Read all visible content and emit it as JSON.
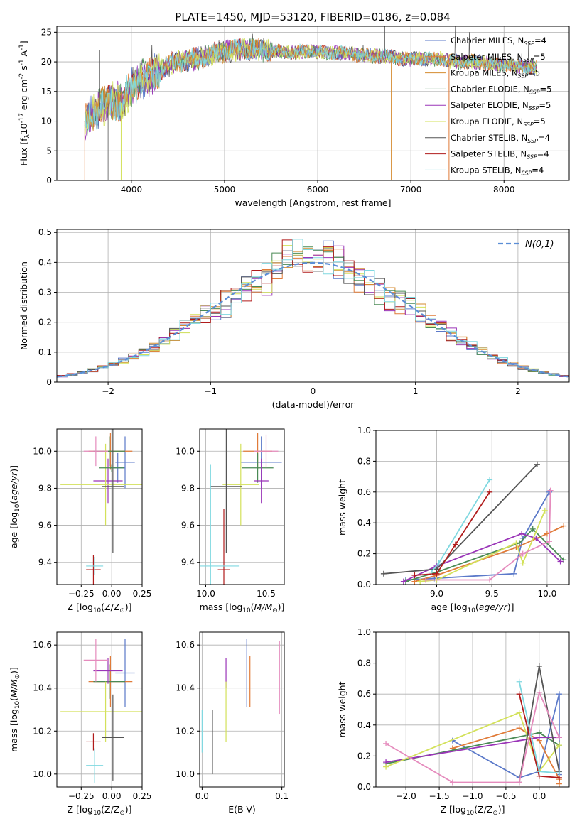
{
  "figure_title": "PLATE=1450, MJD=53120, FIBERID=0186, z=0.084",
  "chart_data": [
    {
      "type": "line",
      "xlabel": "wavelength [Angstrom, rest frame]",
      "ylabel": "Flux [f$_\\lambda$10$^{-17}$ erg cm$^{-2}$ s$^{-1}$ A$^{-1}$]",
      "xlim": [
        3200,
        8700
      ],
      "ylim": [
        0,
        26
      ],
      "xticks": [
        4000,
        5000,
        6000,
        7000,
        8000
      ],
      "yticks": [
        0,
        5,
        10,
        15,
        20,
        25
      ],
      "legend_position": "right",
      "envelope": {
        "x": [
          3500,
          3600,
          3700,
          3800,
          3900,
          4000,
          4100,
          4200,
          4300,
          4400,
          4500,
          4700,
          4900,
          5100,
          5300,
          5500,
          5700,
          5900,
          6100,
          6300,
          6500,
          6700,
          6900,
          7100,
          7300,
          7500,
          7700,
          7900,
          8100,
          8300
        ],
        "y": [
          10,
          11.5,
          12.5,
          13.5,
          13,
          15.5,
          17,
          17.5,
          18.5,
          19.5,
          20,
          20.5,
          21.5,
          22,
          22,
          22,
          21.5,
          21.8,
          21.5,
          21.5,
          21,
          21,
          20.5,
          20.5,
          20.5,
          20,
          20,
          19.5,
          19.5,
          19
        ]
      },
      "series": [
        {
          "name": "Chabrier MILES, N$_{SSP}$=4",
          "color": "#5b79c9"
        },
        {
          "name": "Salpeter MILES, N$_{SSP}$=5",
          "color": "#e07b39"
        },
        {
          "name": "Kroupa MILES, N$_{SSP}$=5",
          "color": "#d58b2f"
        },
        {
          "name": "Chabrier ELODIE, N$_{SSP}$=5",
          "color": "#4a8a55"
        },
        {
          "name": "Salpeter ELODIE, N$_{SSP}$=5",
          "color": "#9a35b8"
        },
        {
          "name": "Kroupa ELODIE, N$_{SSP}$=5",
          "color": "#d3e15a"
        },
        {
          "name": "Chabrier STELIB, N$_{SSP}$=4",
          "color": "#555555"
        },
        {
          "name": "Salpeter STELIB, N$_{SSP}$=4",
          "color": "#b01b1b"
        },
        {
          "name": "Kroupa STELIB, N$_{SSP}$=4",
          "color": "#7fd8e0"
        }
      ]
    },
    {
      "type": "histogram",
      "xlabel": "(data-model)/error",
      "ylabel": "Normed distribution",
      "xlim": [
        -2.5,
        2.5
      ],
      "ylim": [
        0,
        0.51
      ],
      "xticks": [
        -2,
        -1,
        0,
        1,
        2
      ],
      "yticks": [
        0.0,
        0.1,
        0.2,
        0.3,
        0.4,
        0.5
      ],
      "legend": "$\\mathcal{N}(0,1)$",
      "legend_position": "upper right",
      "grid": true,
      "bin_width": 0.1
    },
    {
      "type": "scatter",
      "xlabel": "Z [log$_{10}$(Z/Z$_\\odot$)]",
      "ylabel": "age  [log$_{10}$($age/yr$)]",
      "xlim": [
        -0.45,
        0.25
      ],
      "ylim": [
        9.28,
        10.12
      ],
      "xticks": [
        -0.25,
        0.0,
        0.25
      ],
      "yticks": [
        9.4,
        9.6,
        9.8,
        10.0
      ],
      "points": [
        {
          "x": 0.05,
          "y": 9.91,
          "xerr": 0.06,
          "yerr": 0.08,
          "color": "#5b79c9"
        },
        {
          "x": 0.11,
          "y": 9.94,
          "xerr": 0.08,
          "yerr": 0.14,
          "color": "#5b79c9"
        },
        {
          "x": -0.01,
          "y": 10.0,
          "xerr": 0.18,
          "yerr": 0.1,
          "color": "#e07b39"
        },
        {
          "x": -0.02,
          "y": 10.0,
          "xerr": 0.13,
          "yerr": 0.08,
          "color": "#4a8a55"
        },
        {
          "x": -0.03,
          "y": 9.84,
          "xerr": 0.12,
          "yerr": 0.12,
          "color": "#9a35b8"
        },
        {
          "x": -0.05,
          "y": 9.82,
          "xerr": 0.37,
          "yerr": 0.22,
          "color": "#d3e15a"
        },
        {
          "x": 0.01,
          "y": 9.81,
          "xerr": 0.09,
          "yerr": 0.36,
          "color": "#555555"
        },
        {
          "x": -0.15,
          "y": 9.36,
          "xerr": 0.06,
          "yerr": 0.08,
          "color": "#b01b1b"
        },
        {
          "x": -0.14,
          "y": 9.38,
          "xerr": 0.07,
          "yerr": 0.05,
          "color": "#7fd8e0"
        },
        {
          "x": -0.13,
          "y": 10.0,
          "xerr": 0.1,
          "yerr": 0.08,
          "color": "#e58bbd"
        },
        {
          "x": 0.0,
          "y": 9.91,
          "xerr": 0.1,
          "yerr": 0.02,
          "color": "#4a8a55"
        }
      ]
    },
    {
      "type": "scatter",
      "xlabel": "mass [log$_{10}$($M/M_\\odot$)]",
      "xlim": [
        9.95,
        10.65
      ],
      "ylim": [
        9.28,
        10.12
      ],
      "xticks": [
        10.0,
        10.5
      ],
      "yticks": [
        9.4,
        9.6,
        9.8,
        10.0
      ],
      "points": [
        {
          "x": 10.46,
          "y": 9.94,
          "xerr": 0.17,
          "yerr": 0.14,
          "color": "#5b79c9"
        },
        {
          "x": 10.43,
          "y": 10.0,
          "xerr": 0.12,
          "yerr": 0.1,
          "color": "#e07b39"
        },
        {
          "x": 10.43,
          "y": 9.91,
          "xerr": 0.13,
          "yerr": 0.08,
          "color": "#4a8a55"
        },
        {
          "x": 10.46,
          "y": 9.84,
          "xerr": 0.06,
          "yerr": 0.12,
          "color": "#9a35b8"
        },
        {
          "x": 10.29,
          "y": 9.82,
          "xerr": 0.15,
          "yerr": 0.22,
          "color": "#d3e15a"
        },
        {
          "x": 10.17,
          "y": 9.81,
          "xerr": 0.13,
          "yerr": 0.36,
          "color": "#555555"
        },
        {
          "x": 10.15,
          "y": 9.36,
          "xerr": 0.05,
          "yerr": 0.33,
          "color": "#b01b1b"
        },
        {
          "x": 10.04,
          "y": 9.38,
          "xerr": 0.24,
          "yerr": 0.55,
          "color": "#7fd8e0"
        },
        {
          "x": 10.5,
          "y": 10.0,
          "xerr": 0.1,
          "yerr": 0.09,
          "color": "#e58bbd"
        }
      ]
    },
    {
      "type": "line",
      "xlabel": "age  [log$_{10}$($age/yr$)]",
      "ylabel": "mass weight",
      "xlim": [
        8.45,
        10.2
      ],
      "ylim": [
        0,
        1
      ],
      "xticks": [
        9.0,
        9.5,
        10.0
      ],
      "yticks": [
        0.0,
        0.2,
        0.4,
        0.6,
        0.8,
        1.0
      ],
      "grid": true,
      "series": [
        {
          "color": "#5b79c9",
          "x": [
            8.72,
            8.98,
            9.7,
            9.78,
            10.02
          ],
          "y": [
            0.03,
            0.04,
            0.07,
            0.3,
            0.6
          ]
        },
        {
          "color": "#e07b39",
          "x": [
            8.8,
            9.0,
            9.72,
            10.0,
            10.15
          ],
          "y": [
            0.02,
            0.06,
            0.24,
            0.33,
            0.38
          ]
        },
        {
          "color": "#4a8a55",
          "x": [
            8.72,
            9.0,
            9.75,
            9.87,
            10.15
          ],
          "y": [
            0.02,
            0.08,
            0.27,
            0.36,
            0.16
          ]
        },
        {
          "color": "#9a35b8",
          "x": [
            8.7,
            9.0,
            9.77,
            9.9,
            10.12
          ],
          "y": [
            0.02,
            0.12,
            0.33,
            0.3,
            0.15
          ]
        },
        {
          "color": "#d3e15a",
          "x": [
            8.85,
            9.0,
            9.72,
            9.78,
            9.98
          ],
          "y": [
            0.02,
            0.03,
            0.27,
            0.14,
            0.48
          ]
        },
        {
          "color": "#555555",
          "x": [
            8.52,
            9.0,
            9.91
          ],
          "y": [
            0.07,
            0.1,
            0.78
          ]
        },
        {
          "color": "#b01b1b",
          "x": [
            8.8,
            9.0,
            9.17,
            9.48
          ],
          "y": [
            0.06,
            0.07,
            0.26,
            0.6
          ]
        },
        {
          "color": "#7fd8e0",
          "x": [
            8.95,
            9.02,
            9.48
          ],
          "y": [
            0.08,
            0.14,
            0.68
          ]
        },
        {
          "color": "#e58bbd",
          "x": [
            8.9,
            9.48,
            9.78,
            10.02,
            10.03
          ],
          "y": [
            0.03,
            0.03,
            0.2,
            0.28,
            0.61
          ]
        }
      ]
    },
    {
      "type": "scatter",
      "xlabel": "Z [log$_{10}$(Z/Z$_\\odot$)]",
      "ylabel": "mass [log$_{10}$($M/M_\\odot$)]",
      "xlim": [
        -0.45,
        0.25
      ],
      "ylim": [
        9.94,
        10.66
      ],
      "xticks": [
        -0.25,
        0.0,
        0.25
      ],
      "yticks": [
        10.0,
        10.2,
        10.4,
        10.6
      ],
      "points": [
        {
          "x": 0.11,
          "y": 10.47,
          "xerr": 0.08,
          "yerr": 0.16,
          "color": "#5b79c9"
        },
        {
          "x": -0.01,
          "y": 10.43,
          "xerr": 0.18,
          "yerr": 0.12,
          "color": "#e07b39"
        },
        {
          "x": -0.02,
          "y": 10.43,
          "xerr": 0.13,
          "yerr": 0.08,
          "color": "#4a8a55"
        },
        {
          "x": -0.03,
          "y": 10.48,
          "xerr": 0.12,
          "yerr": 0.06,
          "color": "#9a35b8"
        },
        {
          "x": -0.05,
          "y": 10.29,
          "xerr": 0.37,
          "yerr": 0.14,
          "color": "#d3e15a"
        },
        {
          "x": 0.01,
          "y": 10.17,
          "xerr": 0.09,
          "yerr": 0.2,
          "color": "#555555"
        },
        {
          "x": -0.15,
          "y": 10.15,
          "xerr": 0.06,
          "yerr": 0.04,
          "color": "#b01b1b"
        },
        {
          "x": -0.14,
          "y": 10.04,
          "xerr": 0.07,
          "yerr": 0.08,
          "color": "#7fd8e0"
        },
        {
          "x": -0.13,
          "y": 10.53,
          "xerr": 0.1,
          "yerr": 0.1,
          "color": "#e58bbd"
        }
      ]
    },
    {
      "type": "scatter",
      "xlabel": "E(B-V)",
      "xlim": [
        -0.003,
        0.103
      ],
      "ylim": [
        9.94,
        10.66
      ],
      "xticks": [
        0.0,
        0.1
      ],
      "yticks": [
        10.0,
        10.2,
        10.4,
        10.6
      ],
      "points": [
        {
          "x": 0.056,
          "y": 10.47,
          "yerr": 0.16,
          "color": "#5b79c9"
        },
        {
          "x": 0.06,
          "y": 10.43,
          "yerr": 0.12,
          "color": "#e07b39"
        },
        {
          "x": 0.03,
          "y": 10.47,
          "yerr": 0.07,
          "color": "#9a35b8"
        },
        {
          "x": 0.03,
          "y": 10.29,
          "yerr": 0.14,
          "color": "#d3e15a"
        },
        {
          "x": 0.013,
          "y": 10.15,
          "yerr": 0.15,
          "color": "#555555"
        },
        {
          "x": 0.0,
          "y": 10.2,
          "yerr": 0.1,
          "color": "#7fd8e0"
        },
        {
          "x": 0.097,
          "y": 10.45,
          "yerr": 0.17,
          "color": "#e58bbd"
        }
      ]
    },
    {
      "type": "line",
      "xlabel": "Z [log$_{10}$(Z/Z$_\\odot$)]",
      "ylabel": "mass weight",
      "xlim": [
        -2.45,
        0.45
      ],
      "ylim": [
        0,
        1
      ],
      "xticks": [
        -2.0,
        -1.5,
        -1.0,
        -0.5,
        0.0
      ],
      "yticks": [
        0.0,
        0.2,
        0.4,
        0.6,
        0.8,
        1.0
      ],
      "grid": true,
      "series": [
        {
          "color": "#5b79c9",
          "x": [
            -1.3,
            -0.3,
            0.0,
            0.3,
            0.3
          ],
          "y": [
            0.3,
            0.06,
            0.1,
            0.6,
            0.08
          ]
        },
        {
          "color": "#e07b39",
          "x": [
            -1.3,
            -0.3,
            0.0,
            0.3,
            0.3
          ],
          "y": [
            0.25,
            0.38,
            0.3,
            0.05,
            0.02
          ]
        },
        {
          "color": "#4a8a55",
          "x": [
            -2.3,
            0.0,
            0.3
          ],
          "y": [
            0.15,
            0.35,
            0.27
          ]
        },
        {
          "color": "#9a35b8",
          "x": [
            -2.3,
            0.0,
            0.3
          ],
          "y": [
            0.16,
            0.32,
            0.32
          ]
        },
        {
          "color": "#d3e15a",
          "x": [
            -2.3,
            -0.3,
            0.0,
            0.3
          ],
          "y": [
            0.13,
            0.48,
            0.1,
            0.27
          ]
        },
        {
          "color": "#555555",
          "x": [
            -0.3,
            0.0,
            0.3
          ],
          "y": [
            0.03,
            0.78,
            0.1
          ]
        },
        {
          "color": "#b01b1b",
          "x": [
            -0.3,
            0.0,
            0.3
          ],
          "y": [
            0.6,
            0.07,
            0.06
          ]
        },
        {
          "color": "#7fd8e0",
          "x": [
            -0.3,
            0.0,
            0.3
          ],
          "y": [
            0.68,
            0.1,
            0.09
          ]
        },
        {
          "color": "#e58bbd",
          "x": [
            -2.3,
            -1.3,
            -0.3,
            0.0,
            0.3
          ],
          "y": [
            0.28,
            0.03,
            0.03,
            0.61,
            0.32
          ]
        }
      ]
    }
  ]
}
